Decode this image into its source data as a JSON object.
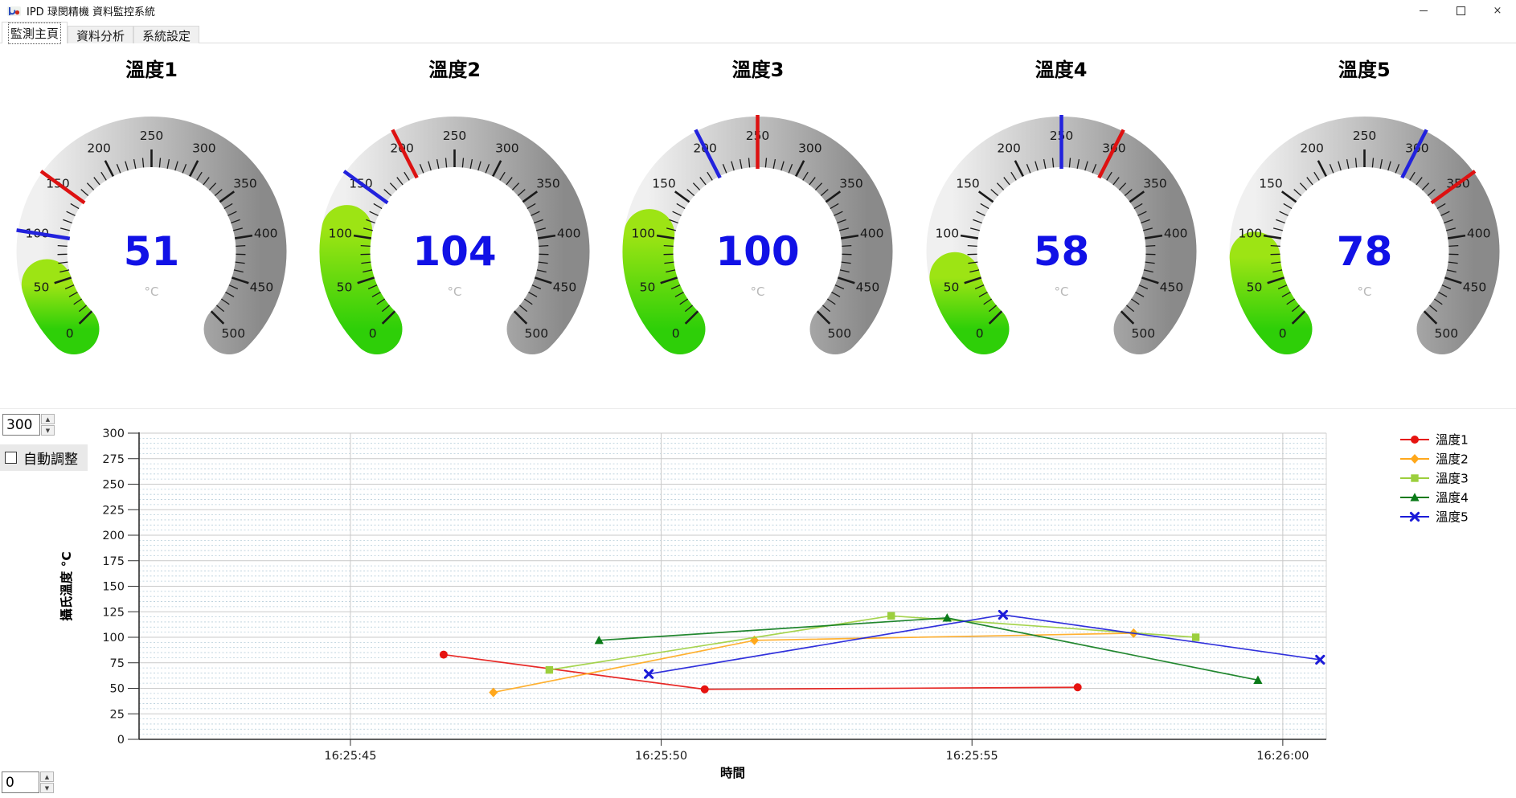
{
  "window": {
    "title": "IPD 琭閔精機 資料監控系統",
    "controls": {
      "minimize": "minimize",
      "maximize": "maximize",
      "close": "×"
    }
  },
  "tabs": [
    {
      "label": "監測主頁",
      "active": true
    },
    {
      "label": "資料分析",
      "active": false
    },
    {
      "label": "系統設定",
      "active": false
    }
  ],
  "gauges": {
    "unit": "°C",
    "min": 0,
    "max": 500,
    "label_step": 50,
    "minor_step": 10,
    "sweep_deg": 270,
    "value_color": "#1111e6",
    "red_mark_color": "#dd1111",
    "blue_mark_color": "#2222dd",
    "items": [
      {
        "name": "溫度1",
        "value": 51,
        "blue_mark": 100,
        "red_mark": 150
      },
      {
        "name": "溫度2",
        "value": 104,
        "blue_mark": 150,
        "red_mark": 200
      },
      {
        "name": "溫度3",
        "value": 100,
        "blue_mark": 200,
        "red_mark": 250
      },
      {
        "name": "溫度4",
        "value": 58,
        "blue_mark": 250,
        "red_mark": 300
      },
      {
        "name": "溫度5",
        "value": 78,
        "blue_mark": 300,
        "red_mark": 350
      }
    ]
  },
  "chart_controls": {
    "y_max_value": "300",
    "y_min_value": "0",
    "autoscale_label": "自動調整",
    "autoscale_checked": false
  },
  "chart_data": {
    "type": "line",
    "title": "",
    "xlabel": "時間",
    "ylabel": "攝氏溫度 °C",
    "ylim": [
      0,
      300
    ],
    "ytick_step": 25,
    "grid": "on",
    "legend_position": "right",
    "x_unit": "seconds after 16:25:00",
    "x_domain": [
      41.6,
      60.7
    ],
    "x_ticks": [
      {
        "t": 45,
        "label": "16:25:45"
      },
      {
        "t": 50,
        "label": "16:25:50"
      },
      {
        "t": 55,
        "label": "16:25:55"
      },
      {
        "t": 60,
        "label": "16:26:00"
      }
    ],
    "series": [
      {
        "name": "溫度1",
        "color": "#e61310",
        "marker": "circle",
        "points": [
          {
            "t": 46.5,
            "v": 83
          },
          {
            "t": 50.7,
            "v": 49
          },
          {
            "t": 56.7,
            "v": 51
          }
        ]
      },
      {
        "name": "溫度2",
        "color": "#ffa81c",
        "marker": "diamond",
        "points": [
          {
            "t": 47.3,
            "v": 46
          },
          {
            "t": 51.5,
            "v": 97
          },
          {
            "t": 57.6,
            "v": 104
          }
        ]
      },
      {
        "name": "溫度3",
        "color": "#9ccf3d",
        "marker": "square",
        "points": [
          {
            "t": 48.2,
            "v": 68
          },
          {
            "t": 53.7,
            "v": 121
          },
          {
            "t": 58.6,
            "v": 100
          }
        ]
      },
      {
        "name": "溫度4",
        "color": "#0a7a18",
        "marker": "triangle",
        "points": [
          {
            "t": 49.0,
            "v": 97
          },
          {
            "t": 54.6,
            "v": 119
          },
          {
            "t": 59.6,
            "v": 58
          }
        ]
      },
      {
        "name": "溫度5",
        "color": "#1b1bd8",
        "marker": "xmark",
        "points": [
          {
            "t": 49.8,
            "v": 64
          },
          {
            "t": 55.5,
            "v": 122
          },
          {
            "t": 60.6,
            "v": 78
          }
        ]
      }
    ]
  }
}
